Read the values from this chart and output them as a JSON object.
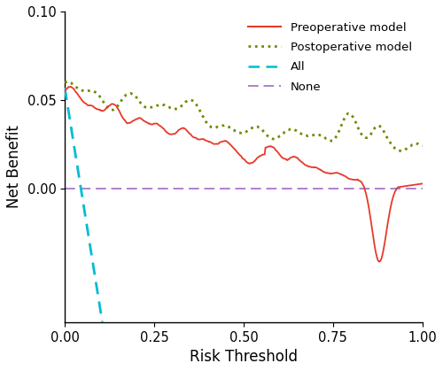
{
  "title": "",
  "xlabel": "Risk Threshold",
  "ylabel": "Net Benefit",
  "xlim": [
    0.0,
    1.0
  ],
  "ylim": [
    -0.075,
    0.1
  ],
  "yticks": [
    0.0,
    0.05,
    0.1
  ],
  "xticks": [
    0.0,
    0.25,
    0.5,
    0.75,
    1.0
  ],
  "background_color": "#ffffff",
  "preop_color": "#e8392a",
  "postop_color": "#6b8e00",
  "all_color": "#00bcd4",
  "none_color": "#b07fcc",
  "legend_labels": [
    "Preoperative model",
    "Postoperative model",
    "All",
    "None"
  ]
}
